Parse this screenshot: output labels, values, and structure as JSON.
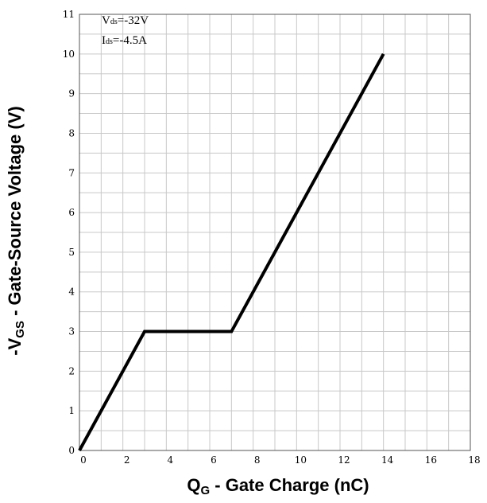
{
  "chart_data": {
    "type": "line",
    "xlabel": {
      "main": "Q",
      "sub": "G",
      "rest": " - Gate Charge (nC)"
    },
    "ylabel": {
      "main": "-V",
      "sub": "GS",
      "rest": " - Gate-Source Voltage (V)"
    },
    "xlim": [
      0,
      18
    ],
    "ylim": [
      0,
      11
    ],
    "x_ticks": [
      0,
      2,
      4,
      6,
      8,
      10,
      12,
      14,
      16,
      18
    ],
    "y_ticks": [
      0,
      1,
      2,
      3,
      4,
      5,
      6,
      7,
      8,
      9,
      10,
      11
    ],
    "x_minor_step": 1,
    "y_minor_step": 0.5,
    "grid": true,
    "annotations": [
      {
        "main": "V",
        "sub": "ds",
        "rest": "=-32V"
      },
      {
        "main": "I",
        "sub": "ds",
        "rest": "=-4.5A"
      }
    ],
    "series": [
      {
        "x": [
          0,
          3,
          7,
          14
        ],
        "y": [
          0,
          3,
          3,
          10
        ],
        "color": "#000000"
      }
    ]
  }
}
